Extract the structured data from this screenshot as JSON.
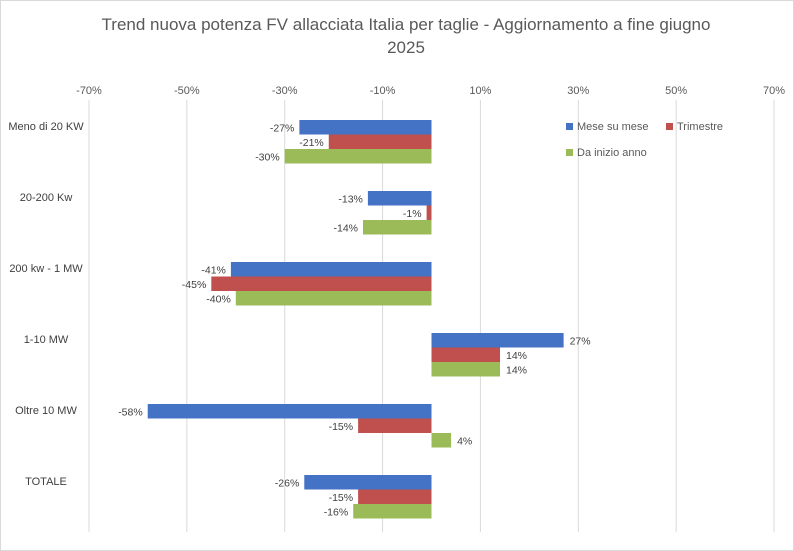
{
  "chart_data": {
    "type": "bar",
    "orientation": "horizontal",
    "title_line1": "Trend nuova potenza FV allacciata Italia per taglie - Aggiornamento a fine giugno",
    "title_line2": "2025",
    "categories": [
      "Meno di 20 KW",
      "20-200 Kw",
      "200 kw - 1 MW",
      "1-10 MW",
      "Oltre 10 MW",
      "TOTALE"
    ],
    "series": [
      {
        "name": "Mese su mese",
        "color": "#4472c4",
        "values": [
          -27,
          -13,
          -41,
          27,
          -58,
          -26
        ]
      },
      {
        "name": "Trimestre",
        "color": "#c0504d",
        "values": [
          -21,
          -1,
          -45,
          14,
          -15,
          -15
        ]
      },
      {
        "name": "Da inizio anno",
        "color": "#9bbb59",
        "values": [
          -30,
          -14,
          -40,
          14,
          4,
          -16
        ]
      }
    ],
    "x_ticks": [
      "-70%",
      "-50%",
      "-30%",
      "-10%",
      "10%",
      "30%",
      "50%",
      "70%"
    ],
    "x_tick_values": [
      -70,
      -50,
      -30,
      -10,
      10,
      30,
      50,
      70
    ],
    "xlim": [
      -70,
      70
    ],
    "value_format": "percent",
    "grid": "vertical",
    "legend_position": "top-right"
  }
}
